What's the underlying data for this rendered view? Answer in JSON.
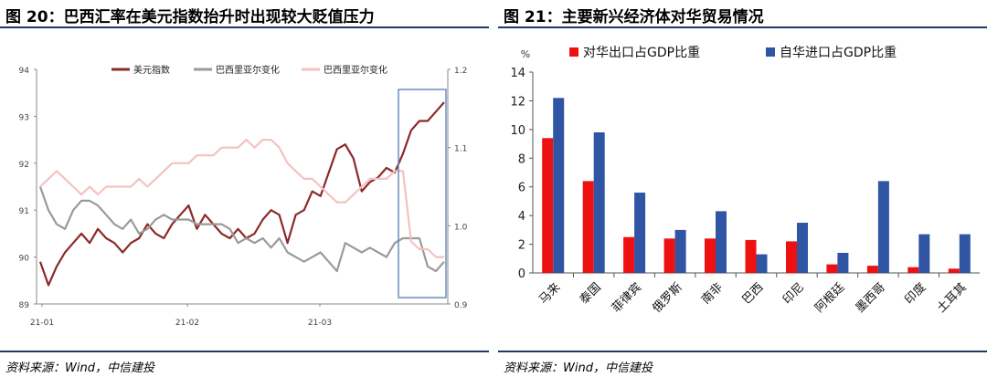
{
  "left": {
    "title": "图 20：巴西汇率在美元指数抬升时出现较大贬值压力",
    "source": "资料来源：Wind，中信建投",
    "chart_data": {
      "type": "line",
      "x_ticks": [
        "21-01",
        "21-02",
        "21-03"
      ],
      "y_left_range": [
        89,
        94
      ],
      "y_left_ticks": [
        "94",
        "93",
        "92",
        "91",
        "90",
        "89"
      ],
      "y_right_range": [
        0.9,
        1.2
      ],
      "y_right_ticks": [
        "1.2",
        "1.1",
        "1.0",
        "0.9"
      ],
      "legend_position": "top",
      "series": [
        {
          "name": "美元指数",
          "axis": "left",
          "color": "#8b2a2a",
          "values": [
            89.9,
            89.4,
            89.8,
            90.1,
            90.3,
            90.5,
            90.3,
            90.6,
            90.4,
            90.3,
            90.1,
            90.3,
            90.4,
            90.7,
            90.5,
            90.4,
            90.7,
            90.9,
            91.1,
            90.6,
            90.9,
            90.7,
            90.5,
            90.4,
            90.6,
            90.4,
            90.5,
            90.8,
            91.0,
            90.9,
            90.3,
            90.9,
            91.0,
            91.4,
            91.3,
            91.8,
            92.3,
            92.4,
            92.1,
            91.4,
            91.6,
            91.7,
            91.9,
            91.8,
            92.2,
            92.7,
            92.9,
            92.9,
            93.1,
            93.3
          ]
        },
        {
          "name": "巴西里亚尔变化",
          "axis": "left",
          "color": "#9a9a9a",
          "values": [
            91.5,
            91.0,
            90.7,
            90.6,
            91.0,
            91.2,
            91.2,
            91.1,
            90.9,
            90.7,
            90.6,
            90.8,
            90.5,
            90.6,
            90.8,
            90.9,
            90.8,
            90.8,
            90.8,
            90.7,
            90.7,
            90.7,
            90.7,
            90.6,
            90.3,
            90.4,
            90.3,
            90.4,
            90.2,
            90.4,
            90.1,
            90.0,
            89.9,
            90.0,
            90.1,
            89.9,
            89.7,
            90.3,
            90.2,
            90.1,
            90.2,
            90.1,
            90.0,
            90.3,
            90.4,
            90.4,
            90.4,
            89.8,
            89.7,
            89.9
          ]
        },
        {
          "name": "巴西里亚尔变化",
          "axis": "right",
          "color": "#f4c2c2",
          "values": [
            1.05,
            1.06,
            1.07,
            1.06,
            1.05,
            1.04,
            1.05,
            1.04,
            1.05,
            1.05,
            1.05,
            1.05,
            1.06,
            1.05,
            1.06,
            1.07,
            1.08,
            1.08,
            1.08,
            1.09,
            1.09,
            1.09,
            1.1,
            1.1,
            1.1,
            1.11,
            1.1,
            1.11,
            1.11,
            1.1,
            1.08,
            1.07,
            1.06,
            1.06,
            1.05,
            1.04,
            1.03,
            1.03,
            1.04,
            1.05,
            1.06,
            1.06,
            1.06,
            1.07,
            1.07,
            0.98,
            0.97,
            0.97,
            0.96,
            0.96
          ]
        }
      ]
    }
  },
  "right": {
    "title": "图 21：主要新兴经济体对华贸易情况",
    "source": "资料来源：Wind，中信建投",
    "chart_data": {
      "type": "bar",
      "ylabel": "%",
      "ylim": [
        0,
        14
      ],
      "y_ticks": [
        "0",
        "2",
        "4",
        "6",
        "8",
        "10",
        "12",
        "14"
      ],
      "legend_position": "top",
      "categories": [
        "马来",
        "泰国",
        "菲律宾",
        "俄罗斯",
        "南非",
        "巴西",
        "印尼",
        "阿根廷",
        "墨西哥",
        "印度",
        "土耳其"
      ],
      "series": [
        {
          "name": "对华出口占GDP比重",
          "color": "#ee1111",
          "values": [
            9.4,
            6.4,
            2.5,
            2.4,
            2.4,
            2.3,
            2.2,
            0.6,
            0.5,
            0.4,
            0.3
          ]
        },
        {
          "name": "自华进口占GDP比重",
          "color": "#2f55a4",
          "values": [
            12.2,
            9.8,
            5.6,
            3.0,
            4.3,
            1.3,
            3.5,
            1.4,
            6.4,
            2.7,
            2.7
          ]
        }
      ]
    }
  }
}
